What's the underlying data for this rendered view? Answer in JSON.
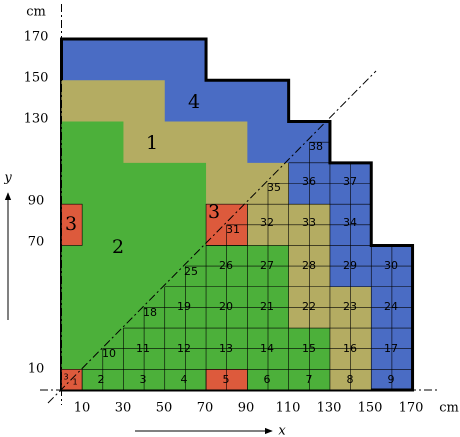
{
  "axis": {
    "x_unit": "cm",
    "y_unit": "cm",
    "x_label": "x",
    "y_label": "y",
    "x_ticks": [
      "10",
      "30",
      "50",
      "70",
      "90",
      "110",
      "130",
      "150",
      "170"
    ],
    "y_ticks": [
      "170",
      "150",
      "130",
      "90",
      "70",
      "10"
    ]
  },
  "regions": [
    "4",
    "1",
    "2",
    "3",
    "3"
  ],
  "cells": [
    "3",
    "1",
    "2",
    "3",
    "4",
    "5",
    "6",
    "7",
    "8",
    "9",
    "10",
    "11",
    "12",
    "13",
    "14",
    "15",
    "16",
    "17",
    "18",
    "19",
    "20",
    "21",
    "22",
    "23",
    "24",
    "25",
    "26",
    "27",
    "28",
    "29",
    "30",
    "31",
    "32",
    "33",
    "34",
    "35",
    "36",
    "37",
    "38"
  ]
}
